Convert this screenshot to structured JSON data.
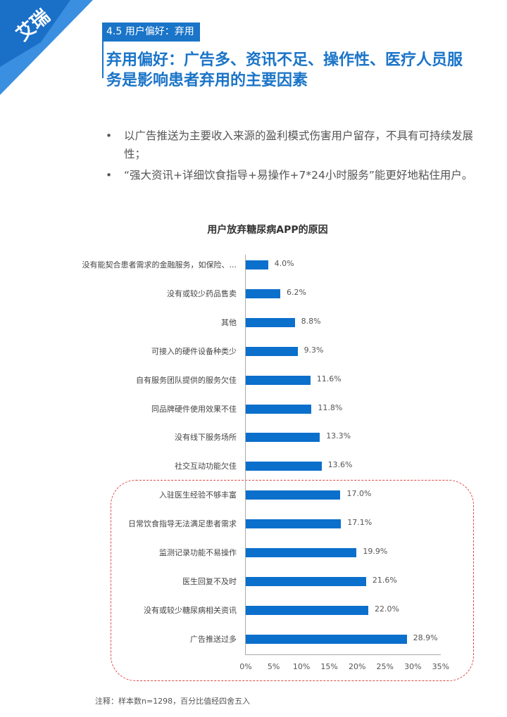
{
  "header": {
    "logo_text": "艾瑞",
    "section_tag": "4.5 用户偏好：弃用",
    "title": "弃用偏好：广告多、资讯不足、操作性、医疗人员服务是影响患者弃用的主要因素"
  },
  "bullets": [
    {
      "marker": "•",
      "text": "以广告推送为主要收入来源的盈利模式伤害用户留存，不具有可持续发展性；"
    },
    {
      "marker": "•",
      "text": "“强大资讯+详细饮食指导+易操作+7*24小时服务”能更好地粘住用户。"
    }
  ],
  "colors": {
    "accent": "#1a74c8",
    "bar": "#0b6fcc",
    "highlight_border": "#e04848"
  },
  "chart_data": {
    "type": "bar",
    "orientation": "horizontal",
    "title": "用户放弃糖尿病APP的原因",
    "xlabel": "",
    "ylabel": "",
    "xlim": [
      0,
      35
    ],
    "x_ticks": [
      "0%",
      "5%",
      "10%",
      "15%",
      "20%",
      "25%",
      "30%",
      "35%"
    ],
    "categories": [
      "没有能契合患者需求的金融服务，如保险、...",
      "没有或较少药品售卖",
      "其他",
      "可接入的硬件设备种类少",
      "自有服务团队提供的服务欠佳",
      "同品牌硬件使用效果不佳",
      "没有线下服务场所",
      "社交互动功能欠佳",
      "入驻医生经验不够丰富",
      "日常饮食指导无法满足患者需求",
      "监测记录功能不易操作",
      "医生回复不及时",
      "没有或较少糖尿病相关资讯",
      "广告推送过多"
    ],
    "values": [
      4.0,
      6.2,
      8.8,
      9.3,
      11.6,
      11.8,
      13.3,
      13.6,
      17.0,
      17.1,
      19.9,
      21.6,
      22.0,
      28.9
    ],
    "value_labels": [
      "4.0%",
      "6.2%",
      "8.8%",
      "9.3%",
      "11.6%",
      "11.8%",
      "13.3%",
      "13.6%",
      "17.0%",
      "17.1%",
      "19.9%",
      "21.6%",
      "22.0%",
      "28.9%"
    ],
    "unit": "%",
    "grid": false,
    "legend": null,
    "annotation": "红色虚线框突出显示后6项（入驻医生经验不够丰富 至 广告推送过多）"
  },
  "note": "注释：样本数n=1298，百分比值经四舍五入"
}
